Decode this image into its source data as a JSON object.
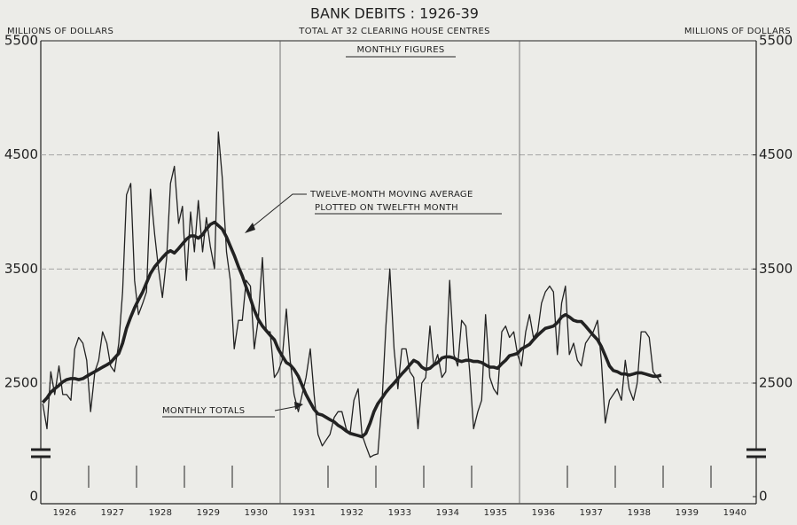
{
  "chart_data": {
    "type": "line",
    "title": "BANK DEBITS : 1926-39",
    "subtitle": "TOTAL AT 32 CLEARING HOUSE CENTRES",
    "y_label": "MILLIONS OF DOLLARS",
    "y2_label": "MILLIONS OF DOLLARS",
    "panel_label": "MONTHLY FIGURES",
    "annotations": [
      "TWELVE-MONTH MOVING AVERAGE",
      "PLOTTED ON TWELFTH MONTH",
      "MONTHLY TOTALS"
    ],
    "categories": [
      "1926",
      "1927",
      "1928",
      "1929",
      "1930",
      "1931",
      "1932",
      "1933",
      "1934",
      "1935",
      "1936",
      "1937",
      "1938",
      "1939",
      "1940"
    ],
    "xlim": [
      1926,
      1941
    ],
    "xticks": [
      1927,
      1928,
      1929,
      1930,
      1931,
      1932,
      1933,
      1934,
      1935,
      1936,
      1937,
      1938,
      1939,
      1940
    ],
    "ylim": [
      1700,
      5500
    ],
    "yticks": [
      0,
      2500,
      3500,
      4500,
      5500
    ],
    "y2lim": [
      1700,
      5500
    ],
    "y2ticks": [
      0,
      2500,
      3500,
      4500,
      5500
    ],
    "axis_break": true,
    "grid": true,
    "x": [
      1926.04,
      1926.13,
      1926.21,
      1926.29,
      1926.38,
      1926.46,
      1926.54,
      1926.63,
      1926.71,
      1926.79,
      1926.88,
      1926.96,
      1927.04,
      1927.13,
      1927.21,
      1927.29,
      1927.38,
      1927.46,
      1927.54,
      1927.63,
      1927.71,
      1927.79,
      1927.88,
      1927.96,
      1928.04,
      1928.13,
      1928.21,
      1928.29,
      1928.38,
      1928.46,
      1928.54,
      1928.63,
      1928.71,
      1928.79,
      1928.88,
      1928.96,
      1929.04,
      1929.13,
      1929.21,
      1929.29,
      1929.38,
      1929.46,
      1929.54,
      1929.63,
      1929.71,
      1929.79,
      1929.88,
      1929.96,
      1930.04,
      1930.13,
      1930.21,
      1930.29,
      1930.38,
      1930.46,
      1930.54,
      1930.63,
      1930.71,
      1930.79,
      1930.88,
      1930.96,
      1931.04,
      1931.13,
      1931.21,
      1931.29,
      1931.38,
      1931.46,
      1931.54,
      1931.63,
      1931.71,
      1931.79,
      1931.88,
      1931.96,
      1932.04,
      1932.13,
      1932.21,
      1932.29,
      1932.38,
      1932.46,
      1932.54,
      1932.63,
      1932.71,
      1932.79,
      1932.88,
      1932.96,
      1933.04,
      1933.13,
      1933.21,
      1933.29,
      1933.38,
      1933.46,
      1933.54,
      1933.63,
      1933.71,
      1933.79,
      1933.88,
      1933.96,
      1934.04,
      1934.13,
      1934.21,
      1934.29,
      1934.38,
      1934.46,
      1934.54,
      1934.63,
      1934.71,
      1934.79,
      1934.88,
      1934.96,
      1935.04,
      1935.13,
      1935.21,
      1935.29,
      1935.38,
      1935.46,
      1935.54,
      1935.63,
      1935.71,
      1935.79,
      1935.88,
      1935.96,
      1936.04,
      1936.13,
      1936.21,
      1936.29,
      1936.38,
      1936.46,
      1936.54,
      1936.63,
      1936.71,
      1936.79,
      1936.88,
      1936.96,
      1937.04,
      1937.13,
      1937.21,
      1937.29,
      1937.38,
      1937.46,
      1937.54,
      1937.63,
      1937.71,
      1937.79,
      1937.88,
      1937.96,
      1938.04,
      1938.13,
      1938.21,
      1938.29,
      1938.38,
      1938.46,
      1938.54,
      1938.63,
      1938.71,
      1938.79,
      1938.88,
      1938.96
    ],
    "series": [
      {
        "name": "MONTHLY TOTALS",
        "color": "#222222",
        "width": 1.3,
        "values": [
          2320,
          2100,
          2600,
          2400,
          2650,
          2400,
          2400,
          2350,
          2800,
          2900,
          2850,
          2700,
          2250,
          2600,
          2700,
          2950,
          2850,
          2650,
          2600,
          2850,
          3300,
          4150,
          4250,
          3400,
          3100,
          3200,
          3300,
          4200,
          3800,
          3500,
          3250,
          3600,
          4250,
          4400,
          3900,
          4050,
          3400,
          4000,
          3650,
          4100,
          3650,
          3950,
          3700,
          3500,
          4700,
          4300,
          3650,
          3400,
          2800,
          3050,
          3050,
          3400,
          3350,
          2800,
          3050,
          3600,
          2950,
          2950,
          2550,
          2600,
          2700,
          3150,
          2700,
          2400,
          2250,
          2400,
          2550,
          2800,
          2400,
          2050,
          1950,
          2000,
          2050,
          2200,
          2250,
          2250,
          2100,
          2050,
          2350,
          2450,
          2050,
          1950,
          1850,
          1870,
          1880,
          2350,
          3000,
          3500,
          2800,
          2450,
          2800,
          2800,
          2600,
          2550,
          2100,
          2500,
          2550,
          3000,
          2650,
          2750,
          2550,
          2600,
          3400,
          2750,
          2650,
          3050,
          3000,
          2600,
          2100,
          2250,
          2350,
          3100,
          2550,
          2450,
          2400,
          2950,
          3000,
          2900,
          2950,
          2750,
          2650,
          2950,
          3100,
          2900,
          2950,
          3200,
          3300,
          3350,
          3300,
          2750,
          3200,
          3350,
          2750,
          2850,
          2700,
          2650,
          2850,
          2900,
          2950,
          3050,
          2700,
          2150,
          2350,
          2400,
          2450,
          2350,
          2700,
          2450,
          2350,
          2500,
          2950,
          2950,
          2900,
          2600,
          2550,
          2500
        ]
      },
      {
        "name": "TWELVE-MONTH MOVING AVERAGE",
        "color": "#222222",
        "width": 3.6,
        "values": [
          2330,
          2370,
          2420,
          2450,
          2480,
          2510,
          2530,
          2540,
          2540,
          2530,
          2540,
          2560,
          2580,
          2600,
          2620,
          2640,
          2660,
          2680,
          2720,
          2760,
          2850,
          2980,
          3080,
          3160,
          3230,
          3300,
          3380,
          3460,
          3520,
          3560,
          3600,
          3640,
          3660,
          3640,
          3680,
          3720,
          3760,
          3790,
          3790,
          3770,
          3800,
          3850,
          3890,
          3910,
          3880,
          3850,
          3780,
          3700,
          3620,
          3520,
          3440,
          3340,
          3240,
          3140,
          3060,
          3000,
          2960,
          2920,
          2880,
          2800,
          2740,
          2680,
          2660,
          2620,
          2560,
          2480,
          2400,
          2330,
          2270,
          2230,
          2220,
          2200,
          2180,
          2160,
          2130,
          2110,
          2080,
          2060,
          2050,
          2040,
          2030,
          2060,
          2150,
          2250,
          2320,
          2370,
          2420,
          2460,
          2500,
          2540,
          2580,
          2620,
          2660,
          2700,
          2680,
          2640,
          2620,
          2630,
          2660,
          2680,
          2720,
          2730,
          2730,
          2720,
          2700,
          2690,
          2700,
          2700,
          2690,
          2690,
          2680,
          2660,
          2640,
          2640,
          2630,
          2670,
          2700,
          2740,
          2750,
          2760,
          2800,
          2820,
          2840,
          2880,
          2920,
          2950,
          2980,
          2990,
          3000,
          3030,
          3080,
          3100,
          3080,
          3050,
          3040,
          3040,
          3000,
          2960,
          2920,
          2880,
          2820,
          2740,
          2650,
          2610,
          2600,
          2580,
          2580,
          2570,
          2580,
          2590,
          2590,
          2580,
          2570,
          2560,
          2560,
          2570
        ]
      }
    ]
  }
}
